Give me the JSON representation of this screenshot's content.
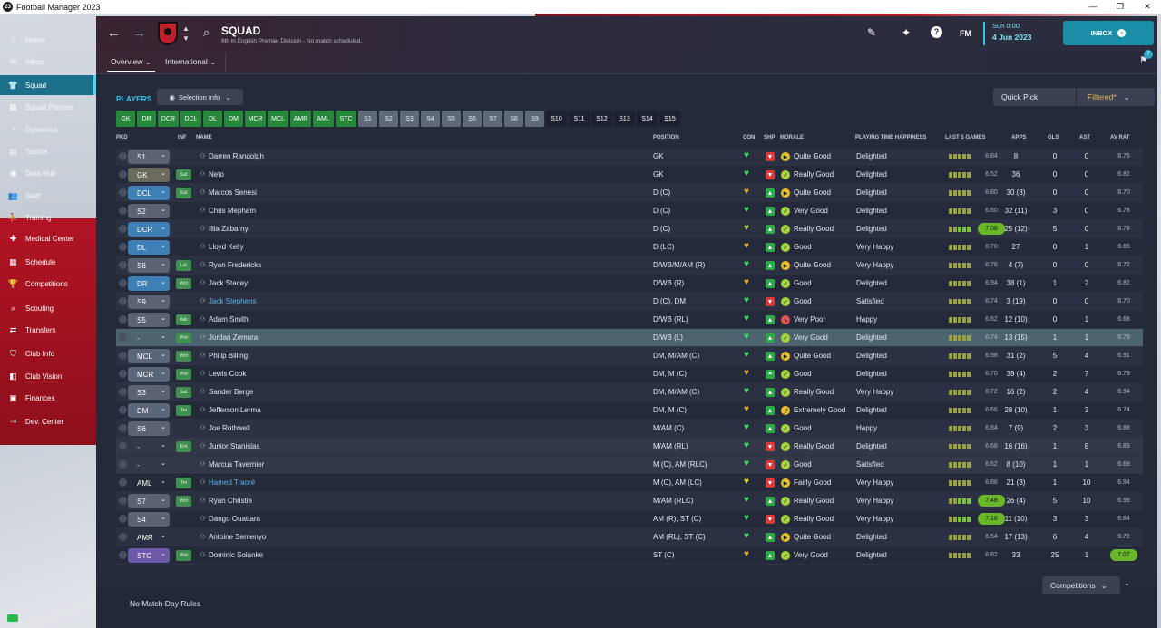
{
  "window": {
    "title": "Football Manager 2023",
    "app_icon": "23",
    "controls": [
      "—",
      "❐",
      "✕"
    ]
  },
  "sidebar": {
    "items": [
      {
        "label": "Home",
        "icon": "home-icon",
        "glyph": "⌂"
      },
      {
        "label": "Inbox",
        "icon": "inbox-icon",
        "glyph": "✉"
      },
      {
        "label": "Squad",
        "icon": "shirt-icon",
        "glyph": "👕"
      },
      {
        "label": "Squad Planner",
        "icon": "planner-icon",
        "glyph": "▦"
      },
      {
        "label": "Dynamics",
        "icon": "dynamics-icon",
        "glyph": "◔"
      },
      {
        "label": "Tactics",
        "icon": "tactics-icon",
        "glyph": "▤"
      },
      {
        "label": "Data Hub",
        "icon": "data-hub-icon",
        "glyph": "◉"
      },
      {
        "label": "Staff",
        "icon": "staff-icon",
        "glyph": "👥"
      },
      {
        "label": "Training",
        "icon": "training-icon",
        "glyph": "⛹"
      },
      {
        "label": "Medical Center",
        "icon": "medical-icon",
        "glyph": "✚"
      },
      {
        "label": "Schedule",
        "icon": "calendar-icon",
        "glyph": "▦"
      },
      {
        "label": "Competitions",
        "icon": "trophy-icon",
        "glyph": "🏆"
      },
      {
        "label": "Scouting",
        "icon": "search-icon",
        "glyph": "⌕"
      },
      {
        "label": "Transfers",
        "icon": "transfers-icon",
        "glyph": "⇄"
      },
      {
        "label": "Club Info",
        "icon": "shield-icon",
        "glyph": "⛉"
      },
      {
        "label": "Club Vision",
        "icon": "vision-icon",
        "glyph": "◧"
      },
      {
        "label": "Finances",
        "icon": "finances-icon",
        "glyph": "▣"
      },
      {
        "label": "Dev. Center",
        "icon": "dev-center-icon",
        "glyph": "⇢"
      }
    ]
  },
  "header": {
    "title": "SQUAD",
    "subtitle": "8th in English Premier Division - No match scheduled.",
    "fm_logo": "FM",
    "date_line1": "Sun 0:00",
    "date_line2": "4 Jun 2023",
    "inbox_label": "INBOX",
    "notification_count": "7"
  },
  "subnav": {
    "tabs": [
      "Overview",
      "International"
    ]
  },
  "toolbar": {
    "players_label": "PLAYERS",
    "selection_info": "Selection Info",
    "quick_pick": "Quick Pick",
    "filtered": "Filtered*"
  },
  "position_buttons": [
    {
      "label": "GK",
      "kind": "g"
    },
    {
      "label": "DR",
      "kind": "g"
    },
    {
      "label": "DCR",
      "kind": "g"
    },
    {
      "label": "DCL",
      "kind": "g"
    },
    {
      "label": "DL",
      "kind": "g"
    },
    {
      "label": "DM",
      "kind": "g"
    },
    {
      "label": "MCR",
      "kind": "g"
    },
    {
      "label": "MCL",
      "kind": "g"
    },
    {
      "label": "AMR",
      "kind": "g"
    },
    {
      "label": "AML",
      "kind": "g"
    },
    {
      "label": "STC",
      "kind": "g"
    },
    {
      "label": "S1",
      "kind": "s"
    },
    {
      "label": "S2",
      "kind": "s"
    },
    {
      "label": "S3",
      "kind": "s"
    },
    {
      "label": "S4",
      "kind": "s"
    },
    {
      "label": "S5",
      "kind": "s"
    },
    {
      "label": "S6",
      "kind": "s"
    },
    {
      "label": "S7",
      "kind": "s"
    },
    {
      "label": "S8",
      "kind": "s"
    },
    {
      "label": "S9",
      "kind": "s"
    },
    {
      "label": "S10",
      "kind": "d"
    },
    {
      "label": "S11",
      "kind": "d"
    },
    {
      "label": "S12",
      "kind": "d"
    },
    {
      "label": "S13",
      "kind": "d"
    },
    {
      "label": "S14",
      "kind": "d"
    },
    {
      "label": "S15",
      "kind": "d"
    }
  ],
  "table": {
    "headers": [
      "PKD",
      "INF",
      "NAME",
      "POSITION",
      "CON",
      "SHP",
      "MORALE",
      "PLAYING TIME HAPPINESS",
      "LAST 5 GAMES",
      "APPS",
      "GLS",
      "AST",
      "AV RAT"
    ],
    "rows": [
      {
        "pkd": "S1",
        "pkd_style": "gray",
        "inf": "",
        "name": "Darren Randolph",
        "link": false,
        "position": "GK",
        "con": "#3ddc6a",
        "shp": "down",
        "morale_icon": "play",
        "morale": "Quite Good",
        "pth": "Delighted",
        "last5": "6.84",
        "last5_hot": false,
        "apps": "8",
        "gls": "0",
        "ast": "0",
        "avr": "6.75",
        "avr_hot": false,
        "bg": "alt"
      },
      {
        "pkd": "GK",
        "pkd_style": "gk",
        "inf": "Sat",
        "name": "Neto",
        "link": false,
        "position": "GK",
        "con": "#3ddc6a",
        "shp": "down",
        "morale_icon": "check",
        "morale": "Really Good",
        "pth": "Delighted",
        "last5": "6.52",
        "last5_hot": false,
        "apps": "36",
        "gls": "0",
        "ast": "0",
        "avr": "6.82",
        "avr_hot": false,
        "bg": ""
      },
      {
        "pkd": "DCL",
        "pkd_style": "def",
        "inf": "Sat",
        "name": "Marcos Senesi",
        "link": false,
        "position": "D (C)",
        "con": "#e3a92c",
        "shp": "up",
        "morale_icon": "play",
        "morale": "Quite Good",
        "pth": "Delighted",
        "last5": "6.80",
        "last5_hot": false,
        "apps": "30 (8)",
        "gls": "0",
        "ast": "0",
        "avr": "6.70",
        "avr_hot": false,
        "bg": "alt"
      },
      {
        "pkd": "S2",
        "pkd_style": "gray",
        "inf": "",
        "name": "Chris Mepham",
        "link": false,
        "position": "D (C)",
        "con": "#3ddc6a",
        "shp": "up",
        "morale_icon": "check",
        "morale": "Very Good",
        "pth": "Delighted",
        "last5": "6.60",
        "last5_hot": false,
        "apps": "32 (11)",
        "gls": "3",
        "ast": "0",
        "avr": "6.78",
        "avr_hot": false,
        "bg": ""
      },
      {
        "pkd": "DCR",
        "pkd_style": "def",
        "inf": "",
        "name": "Illia Zabarnyi",
        "link": false,
        "position": "D (C)",
        "con": "#a6dc3d",
        "shp": "up",
        "morale_icon": "check",
        "morale": "Really Good",
        "pth": "Delighted",
        "last5": "7.08",
        "last5_hot": true,
        "apps": "25 (12)",
        "gls": "5",
        "ast": "0",
        "avr": "6.78",
        "avr_hot": false,
        "bg": "alt"
      },
      {
        "pkd": "DL",
        "pkd_style": "def",
        "inf": "",
        "name": "Lloyd Kelly",
        "link": false,
        "position": "D (LC)",
        "con": "#e3a92c",
        "shp": "up",
        "morale_icon": "check",
        "morale": "Good",
        "pth": "Very Happy",
        "last5": "6.70",
        "last5_hot": false,
        "apps": "27",
        "gls": "0",
        "ast": "1",
        "avr": "6.65",
        "avr_hot": false,
        "bg": ""
      },
      {
        "pkd": "S8",
        "pkd_style": "gray",
        "inf": "Lst",
        "name": "Ryan Fredericks",
        "link": false,
        "position": "D/WB/M/AM (R)",
        "con": "#3ddc6a",
        "shp": "up",
        "morale_icon": "play",
        "morale": "Quite Good",
        "pth": "Very Happy",
        "last5": "6.76",
        "last5_hot": false,
        "apps": "4 (7)",
        "gls": "0",
        "ast": "0",
        "avr": "6.72",
        "avr_hot": false,
        "bg": "alt"
      },
      {
        "pkd": "DR",
        "pkd_style": "def",
        "inf": "Wnt",
        "name": "Jack Stacey",
        "link": false,
        "position": "D/WB (R)",
        "con": "#e3a92c",
        "shp": "up",
        "morale_icon": "check",
        "morale": "Good",
        "pth": "Delighted",
        "last5": "6.94",
        "last5_hot": false,
        "apps": "38 (1)",
        "gls": "1",
        "ast": "2",
        "avr": "6.82",
        "avr_hot": false,
        "bg": ""
      },
      {
        "pkd": "S9",
        "pkd_style": "gray",
        "inf": "",
        "name": "Jack Stephens",
        "link": true,
        "position": "D (C), DM",
        "con": "#3ddc6a",
        "shp": "down",
        "morale_icon": "check",
        "morale": "Good",
        "pth": "Satisfied",
        "last5": "6.74",
        "last5_hot": false,
        "apps": "3 (19)",
        "gls": "0",
        "ast": "0",
        "avr": "6.70",
        "avr_hot": false,
        "bg": "alt"
      },
      {
        "pkd": "S5",
        "pkd_style": "gray",
        "inf": "Ask",
        "name": "Adam Smith",
        "link": false,
        "position": "D/WB (RL)",
        "con": "#3ddc6a",
        "shp": "up",
        "morale_icon": "bad",
        "morale": "Very Poor",
        "pth": "Happy",
        "last5": "6.62",
        "last5_hot": false,
        "apps": "12 (10)",
        "gls": "0",
        "ast": "1",
        "avr": "6.68",
        "avr_hot": false,
        "bg": ""
      },
      {
        "pkd": "-",
        "pkd_style": "none",
        "inf": "Wnt",
        "name": "Jordan Zemura",
        "link": false,
        "position": "D/WB (L)",
        "con": "#3ddc6a",
        "shp": "up",
        "morale_icon": "check",
        "morale": "Very Good",
        "pth": "Delighted",
        "last5": "6.74",
        "last5_hot": false,
        "apps": "13 (15)",
        "gls": "1",
        "ast": "1",
        "avr": "6.79",
        "avr_hot": false,
        "bg": "sel"
      },
      {
        "pkd": "MCL",
        "pkd_style": "mid",
        "inf": "Wnt",
        "name": "Philip Billing",
        "link": false,
        "position": "DM, M/AM (C)",
        "con": "#3ddc6a",
        "shp": "up",
        "morale_icon": "play",
        "morale": "Quite Good",
        "pth": "Delighted",
        "last5": "6.98",
        "last5_hot": false,
        "apps": "31 (2)",
        "gls": "5",
        "ast": "4",
        "avr": "6.91",
        "avr_hot": false,
        "bg": "alt"
      },
      {
        "pkd": "MCR",
        "pkd_style": "mid",
        "inf": "Wnt",
        "name": "Lewis Cook",
        "link": false,
        "position": "DM, M (C)",
        "con": "#e3a92c",
        "shp": "up2",
        "morale_icon": "check",
        "morale": "Good",
        "pth": "Delighted",
        "last5": "6.70",
        "last5_hot": false,
        "apps": "39 (4)",
        "gls": "2",
        "ast": "7",
        "avr": "6.79",
        "avr_hot": false,
        "bg": ""
      },
      {
        "pkd": "S3",
        "pkd_style": "gray",
        "inf": "Sat",
        "name": "Sander Berge",
        "link": false,
        "position": "DM, M/AM (C)",
        "con": "#3ddc6a",
        "shp": "up",
        "morale_icon": "check",
        "morale": "Really Good",
        "pth": "Very Happy",
        "last5": "6.72",
        "last5_hot": false,
        "apps": "16 (2)",
        "gls": "2",
        "ast": "4",
        "avr": "6.94",
        "avr_hot": false,
        "bg": "alt"
      },
      {
        "pkd": "DM",
        "pkd_style": "mid",
        "inf": "Tm",
        "name": "Jefferson Lerma",
        "link": false,
        "position": "DM, M (C)",
        "con": "#e3a92c",
        "shp": "up",
        "morale_icon": "star",
        "morale": "Extremely Good",
        "pth": "Delighted",
        "last5": "6.66",
        "last5_hot": false,
        "apps": "28 (10)",
        "gls": "1",
        "ast": "3",
        "avr": "6.74",
        "avr_hot": false,
        "bg": ""
      },
      {
        "pkd": "S6",
        "pkd_style": "gray",
        "inf": "",
        "name": "Joe Rothwell",
        "link": false,
        "position": "M/AM (C)",
        "con": "#3ddc6a",
        "shp": "up",
        "morale_icon": "check",
        "morale": "Good",
        "pth": "Happy",
        "last5": "6.84",
        "last5_hot": false,
        "apps": "7 (9)",
        "gls": "2",
        "ast": "3",
        "avr": "6.88",
        "avr_hot": false,
        "bg": "alt"
      },
      {
        "pkd": "-",
        "pkd_style": "none",
        "inf": "Ent",
        "name": "Junior Stanislas",
        "link": false,
        "position": "M/AM (RL)",
        "con": "#3ddc6a",
        "shp": "down",
        "morale_icon": "check",
        "morale": "Really Good",
        "pth": "Delighted",
        "last5": "6.68",
        "last5_hot": false,
        "apps": "16 (16)",
        "gls": "1",
        "ast": "8",
        "avr": "6.83",
        "avr_hot": false,
        "bg": "alt2"
      },
      {
        "pkd": "-",
        "pkd_style": "none",
        "inf": "",
        "name": "Marcus Tavernier",
        "link": false,
        "position": "M (C), AM (RLC)",
        "con": "#3ddc6a",
        "shp": "down",
        "morale_icon": "check",
        "morale": "Good",
        "pth": "Satisfied",
        "last5": "6.62",
        "last5_hot": false,
        "apps": "8 (10)",
        "gls": "1",
        "ast": "1",
        "avr": "6.69",
        "avr_hot": false,
        "bg": "alt2"
      },
      {
        "pkd": "AML",
        "pkd_style": "none",
        "inf": "Tm",
        "name": "Hamed Traoré",
        "link": true,
        "position": "M (C), AM (LC)",
        "con": "#e3d22c",
        "shp": "down",
        "morale_icon": "play",
        "morale": "Fairly Good",
        "pth": "Very Happy",
        "last5": "6.88",
        "last5_hot": false,
        "apps": "21 (3)",
        "gls": "1",
        "ast": "10",
        "avr": "6.94",
        "avr_hot": false,
        "bg": ""
      },
      {
        "pkd": "S7",
        "pkd_style": "gray",
        "inf": "Wnt",
        "name": "Ryan Christie",
        "link": false,
        "position": "M/AM (RLC)",
        "con": "#3ddc6a",
        "shp": "up",
        "morale_icon": "check",
        "morale": "Really Good",
        "pth": "Very Happy",
        "last5": "7.48",
        "last5_hot": true,
        "apps": "26 (4)",
        "gls": "5",
        "ast": "10",
        "avr": "6.99",
        "avr_hot": false,
        "bg": "alt"
      },
      {
        "pkd": "S4",
        "pkd_style": "gray",
        "inf": "",
        "name": "Dango Ouattara",
        "link": false,
        "position": "AM (R), ST (C)",
        "con": "#3ddc6a",
        "shp": "down",
        "morale_icon": "check",
        "morale": "Really Good",
        "pth": "Very Happy",
        "last5": "7.16",
        "last5_hot": true,
        "apps": "11 (10)",
        "gls": "3",
        "ast": "3",
        "avr": "6.84",
        "avr_hot": false,
        "bg": ""
      },
      {
        "pkd": "AMR",
        "pkd_style": "none",
        "inf": "",
        "name": "Antoine Semenyo",
        "link": false,
        "position": "AM (RL), ST (C)",
        "con": "#3ddc6a",
        "shp": "up",
        "morale_icon": "play",
        "morale": "Quite Good",
        "pth": "Delighted",
        "last5": "6.54",
        "last5_hot": false,
        "apps": "17 (13)",
        "gls": "6",
        "ast": "4",
        "avr": "6.72",
        "avr_hot": false,
        "bg": "alt"
      },
      {
        "pkd": "STC",
        "pkd_style": "att",
        "inf": "Wnt",
        "name": "Dominic Solanke",
        "link": false,
        "position": "ST (C)",
        "con": "#e3a92c",
        "shp": "up",
        "morale_icon": "check",
        "morale": "Very Good",
        "pth": "Delighted",
        "last5": "6.82",
        "last5_hot": false,
        "apps": "33",
        "gls": "25",
        "ast": "1",
        "avr": "7.07",
        "avr_hot": true,
        "bg": ""
      }
    ]
  },
  "footer": {
    "text": "No Match Day Rules",
    "competitions": "Competitions"
  }
}
